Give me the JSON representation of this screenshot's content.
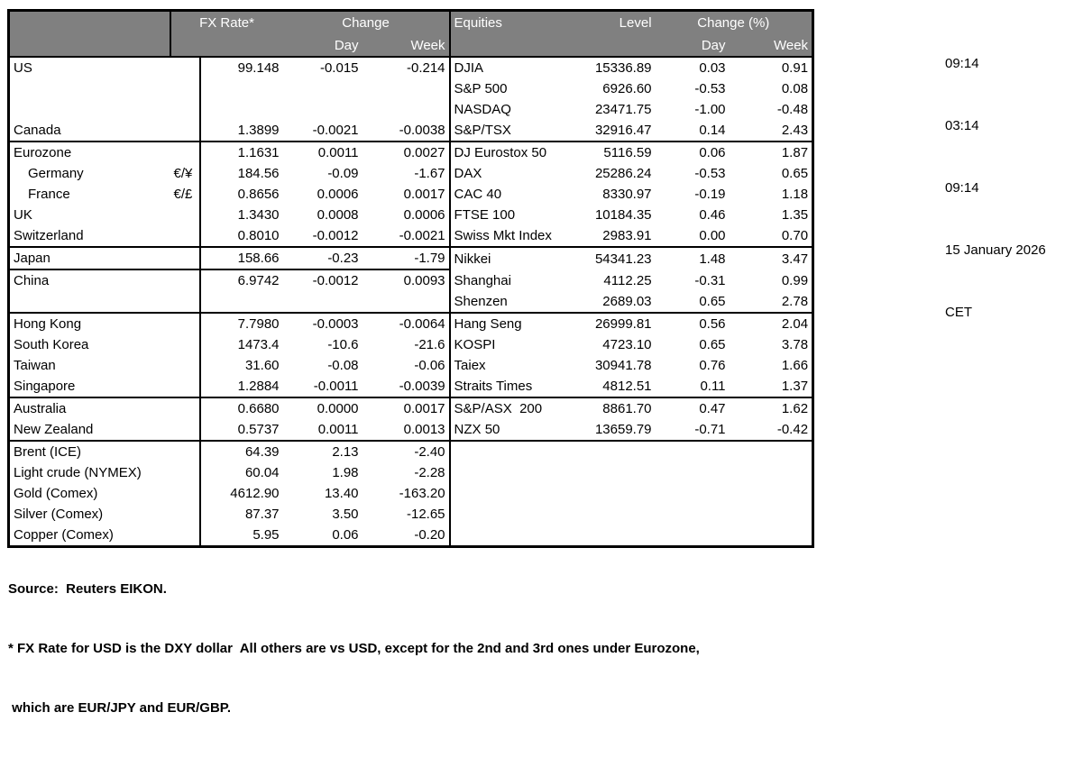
{
  "colors": {
    "header_bg": "#808080",
    "header_text": "#ffffff",
    "border": "#000000",
    "page_bg": "#ffffff"
  },
  "table": {
    "headers": {
      "fx_rate": "FX Rate*",
      "change": "Change",
      "day": "Day",
      "week": "Week",
      "equities": "Equities",
      "level": "Level",
      "change_pct": "Change (%)",
      "eq_day": "Day",
      "eq_week": "Week"
    },
    "rows": [
      {
        "label": "US",
        "pair": "",
        "fx": "99.148",
        "fx_day": "-0.015",
        "fx_week": "-0.214",
        "eq": "DJIA",
        "level": "15336.89",
        "eq_day": "0.03",
        "eq_week": "0.91",
        "indent": false,
        "sep": ""
      },
      {
        "label": "",
        "pair": "",
        "fx": "",
        "fx_day": "",
        "fx_week": "",
        "eq": "S&P 500",
        "level": "6926.60",
        "eq_day": "-0.53",
        "eq_week": "0.08",
        "indent": false,
        "sep": ""
      },
      {
        "label": "",
        "pair": "",
        "fx": "",
        "fx_day": "",
        "fx_week": "",
        "eq": "NASDAQ",
        "level": "23471.75",
        "eq_day": "-1.00",
        "eq_week": "-0.48",
        "indent": false,
        "sep": ""
      },
      {
        "label": "Canada",
        "pair": "",
        "fx": "1.3899",
        "fx_day": "-0.0021",
        "fx_week": "-0.0038",
        "eq": "S&P/TSX",
        "level": "32916.47",
        "eq_day": "0.14",
        "eq_week": "2.43",
        "indent": false,
        "sep": "full"
      },
      {
        "label": "Eurozone",
        "pair": "",
        "fx": "1.1631",
        "fx_day": "0.0011",
        "fx_week": "0.0027",
        "eq": "DJ Eurostox 50",
        "level": "5116.59",
        "eq_day": "0.06",
        "eq_week": "1.87",
        "indent": false,
        "sep": ""
      },
      {
        "label": "Germany",
        "pair": "€/¥",
        "fx": "184.56",
        "fx_day": "-0.09",
        "fx_week": "-1.67",
        "eq": "DAX",
        "level": "25286.24",
        "eq_day": "-0.53",
        "eq_week": "0.65",
        "indent": true,
        "sep": ""
      },
      {
        "label": "France",
        "pair": "€/£",
        "fx": "0.8656",
        "fx_day": "0.0006",
        "fx_week": "0.0017",
        "eq": "CAC 40",
        "level": "8330.97",
        "eq_day": "-0.19",
        "eq_week": "1.18",
        "indent": true,
        "sep": ""
      },
      {
        "label": "UK",
        "pair": "",
        "fx": "1.3430",
        "fx_day": "0.0008",
        "fx_week": "0.0006",
        "eq": "FTSE 100",
        "level": "10184.35",
        "eq_day": "0.46",
        "eq_week": "1.35",
        "indent": false,
        "sep": ""
      },
      {
        "label": "Switzerland",
        "pair": "",
        "fx": "0.8010",
        "fx_day": "-0.0012",
        "fx_week": "-0.0021",
        "eq": "Swiss Mkt Index",
        "level": "2983.91",
        "eq_day": "0.00",
        "eq_week": "0.70",
        "indent": false,
        "sep": "full"
      },
      {
        "label": "Japan",
        "pair": "",
        "fx": "158.66",
        "fx_day": "-0.23",
        "fx_week": "-1.79",
        "eq": "Nikkei",
        "level": "54341.23",
        "eq_day": "1.48",
        "eq_week": "3.47",
        "indent": false,
        "sep": "left"
      },
      {
        "label": "China",
        "pair": "",
        "fx": "6.9742",
        "fx_day": "-0.0012",
        "fx_week": "0.0093",
        "eq": "Shanghai",
        "level": "4112.25",
        "eq_day": "-0.31",
        "eq_week": "0.99",
        "indent": false,
        "sep": ""
      },
      {
        "label": "",
        "pair": "",
        "fx": "",
        "fx_day": "",
        "fx_week": "",
        "eq": "Shenzen",
        "level": "2689.03",
        "eq_day": "0.65",
        "eq_week": "2.78",
        "indent": false,
        "sep": "full"
      },
      {
        "label": "Hong Kong",
        "pair": "",
        "fx": "7.7980",
        "fx_day": "-0.0003",
        "fx_week": "-0.0064",
        "eq": "Hang Seng",
        "level": "26999.81",
        "eq_day": "0.56",
        "eq_week": "2.04",
        "indent": false,
        "sep": ""
      },
      {
        "label": "South Korea",
        "pair": "",
        "fx": "1473.4",
        "fx_day": "-10.6",
        "fx_week": "-21.6",
        "eq": "KOSPI",
        "level": "4723.10",
        "eq_day": "0.65",
        "eq_week": "3.78",
        "indent": false,
        "sep": ""
      },
      {
        "label": "Taiwan",
        "pair": "",
        "fx": "31.60",
        "fx_day": "-0.08",
        "fx_week": "-0.06",
        "eq": "Taiex",
        "level": "30941.78",
        "eq_day": "0.76",
        "eq_week": "1.66",
        "indent": false,
        "sep": ""
      },
      {
        "label": "Singapore",
        "pair": "",
        "fx": "1.2884",
        "fx_day": "-0.0011",
        "fx_week": "-0.0039",
        "eq": "Straits Times",
        "level": "4812.51",
        "eq_day": "0.11",
        "eq_week": "1.37",
        "indent": false,
        "sep": "full"
      },
      {
        "label": "Australia",
        "pair": "",
        "fx": "0.6680",
        "fx_day": "0.0000",
        "fx_week": "0.0017",
        "eq": "S&P/ASX  200",
        "level": "8861.70",
        "eq_day": "0.47",
        "eq_week": "1.62",
        "indent": false,
        "sep": ""
      },
      {
        "label": "New Zealand",
        "pair": "",
        "fx": "0.5737",
        "fx_day": "0.0011",
        "fx_week": "0.0013",
        "eq": "NZX 50",
        "level": "13659.79",
        "eq_day": "-0.71",
        "eq_week": "-0.42",
        "indent": false,
        "sep": "full"
      },
      {
        "label": "Brent (ICE)",
        "pair": "",
        "fx": "64.39",
        "fx_day": "2.13",
        "fx_week": "-2.40",
        "eq": "",
        "level": "",
        "eq_day": "",
        "eq_week": "",
        "indent": false,
        "sep": ""
      },
      {
        "label": "Light crude (NYMEX)",
        "pair": "",
        "fx": "60.04",
        "fx_day": "1.98",
        "fx_week": "-2.28",
        "eq": "",
        "level": "",
        "eq_day": "",
        "eq_week": "",
        "indent": false,
        "sep": ""
      },
      {
        "label": "Gold (Comex)",
        "pair": "",
        "fx": "4612.90",
        "fx_day": "13.40",
        "fx_week": "-163.20",
        "eq": "",
        "level": "",
        "eq_day": "",
        "eq_week": "",
        "indent": false,
        "sep": ""
      },
      {
        "label": "Silver (Comex)",
        "pair": "",
        "fx": "87.37",
        "fx_day": "3.50",
        "fx_week": "-12.65",
        "eq": "",
        "level": "",
        "eq_day": "",
        "eq_week": "",
        "indent": false,
        "sep": ""
      },
      {
        "label": "Copper (Comex)",
        "pair": "",
        "fx": "5.95",
        "fx_day": "0.06",
        "fx_week": "-0.20",
        "eq": "",
        "level": "",
        "eq_day": "",
        "eq_week": "",
        "indent": false,
        "sep": ""
      }
    ]
  },
  "timestamps": {
    "lines": [
      "09:14",
      "03:14",
      "09:14",
      "15 January 2026",
      "CET"
    ]
  },
  "footer": {
    "source": "Source:  Reuters EIKON.",
    "note1": "* FX Rate for USD is the DXY dollar  All others are vs USD, except for the 2nd and 3rd ones under Eurozone,",
    "note2": " which are EUR/JPY and EUR/GBP."
  }
}
